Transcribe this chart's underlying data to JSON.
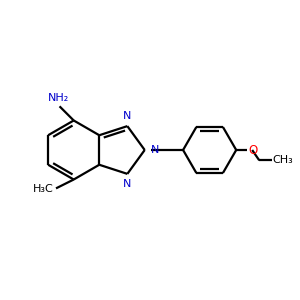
{
  "bg_color": "#ffffff",
  "bond_color": "#000000",
  "n_color": "#0000cc",
  "o_color": "#ff0000",
  "linewidth": 1.6,
  "figsize": [
    3.0,
    3.0
  ],
  "dpi": 100,
  "xlim": [
    0.0,
    1.0
  ],
  "ylim": [
    0.2,
    0.8
  ]
}
